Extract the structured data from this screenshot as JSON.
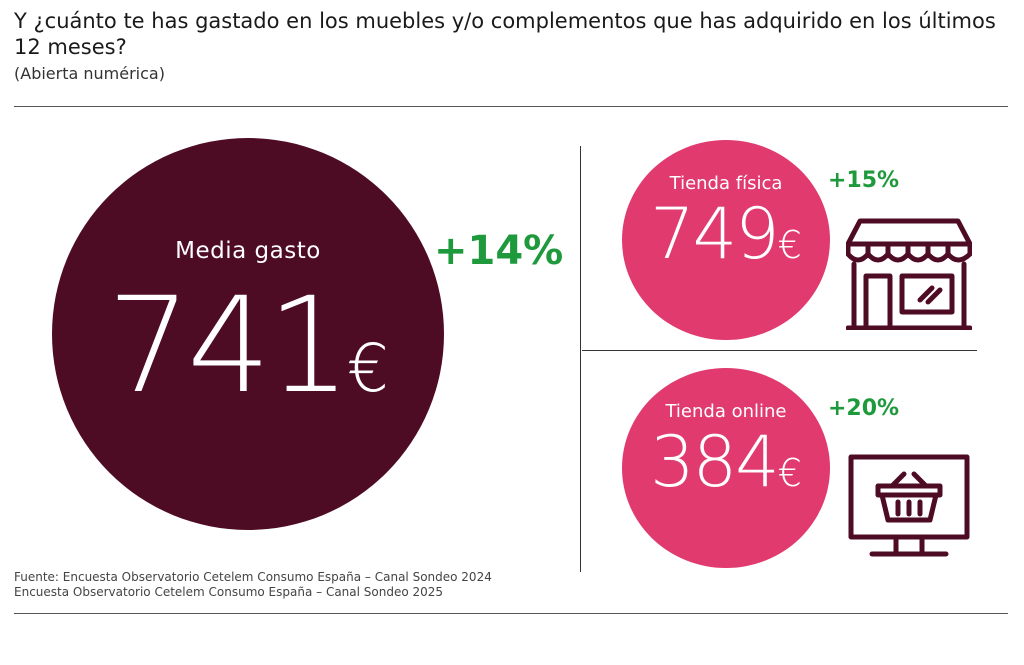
{
  "header": {
    "title": "Y ¿cuánto te has gastado en los muebles y/o complementos que has adquirido en los últimos 12 meses?",
    "subtitle": "(Abierta numérica)"
  },
  "average": {
    "label": "Media gasto",
    "value": "741",
    "currency": "€",
    "change": "+14%"
  },
  "physical_store": {
    "label": "Tienda física",
    "value": "749",
    "currency": "€",
    "change": "+15%",
    "icon": "storefront-icon"
  },
  "online_store": {
    "label": "Tienda online",
    "value": "384",
    "currency": "€",
    "change": "+20%",
    "icon": "monitor-basket-icon"
  },
  "source": {
    "line1": "Fuente: Encuesta Observatorio Cetelem Consumo España – Canal Sondeo 2024",
    "line2": "Encuesta Observatorio Cetelem Consumo España – Canal Sondeo 2025"
  },
  "colors": {
    "dark_circle": "#4e0b24",
    "pink_circle": "#e03a6e",
    "positive": "#1e9a3c",
    "icon_stroke": "#4e0b24"
  }
}
